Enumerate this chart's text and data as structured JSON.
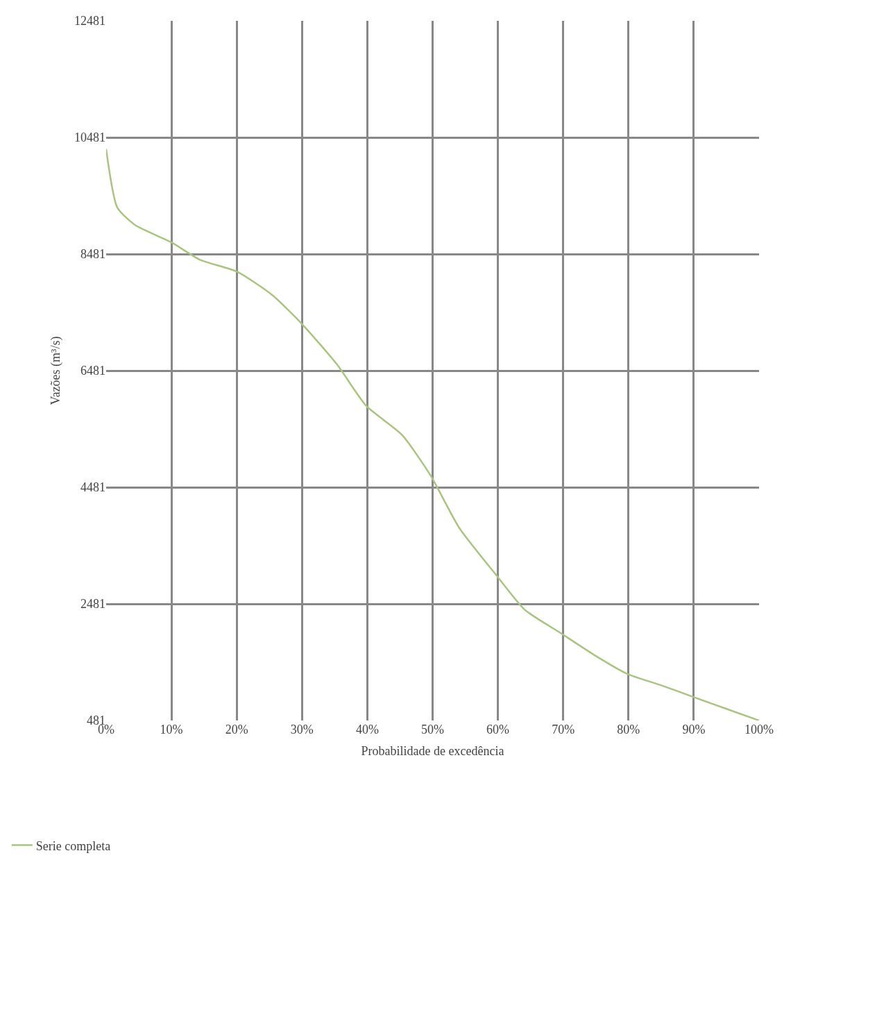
{
  "chart_data": {
    "type": "line",
    "xlabel": "Probabilidade de excedência",
    "ylabel": "Vazões (m³/s)",
    "x": [
      0,
      1.7,
      4.4,
      10,
      14.4,
      20,
      25.4,
      30,
      35.4,
      39.8,
      45.3,
      49.7,
      54.1,
      59.7,
      64.1,
      69.6,
      75.1,
      79.8,
      85.1,
      90,
      95,
      100
    ],
    "series": [
      {
        "name": "Serie completa",
        "color": "#a9c47f",
        "values": [
          10281,
          9281,
          8981,
          8681,
          8381,
          8181,
          7781,
          7281,
          6581,
          5881,
          5381,
          4681,
          3781,
          2981,
          2381,
          1981,
          1581,
          1281,
          1081,
          881,
          681,
          481
        ]
      }
    ],
    "xlim": [
      0,
      100
    ],
    "xticks": [
      {
        "value": 0,
        "label": "0%"
      },
      {
        "value": 10,
        "label": "10%"
      },
      {
        "value": 20,
        "label": "20%"
      },
      {
        "value": 30,
        "label": "30%"
      },
      {
        "value": 40,
        "label": "40%"
      },
      {
        "value": 50,
        "label": "50%"
      },
      {
        "value": 60,
        "label": "60%"
      },
      {
        "value": 70,
        "label": "70%"
      },
      {
        "value": 80,
        "label": "80%"
      },
      {
        "value": 90,
        "label": "90%"
      },
      {
        "value": 100,
        "label": "100%"
      }
    ],
    "ylim": [
      481,
      12481
    ],
    "yticks": [
      481,
      2481,
      4481,
      6481,
      8481,
      10481,
      12481
    ],
    "grid": true,
    "legend": "bottom left",
    "marker": "none",
    "line_style": "solid"
  }
}
